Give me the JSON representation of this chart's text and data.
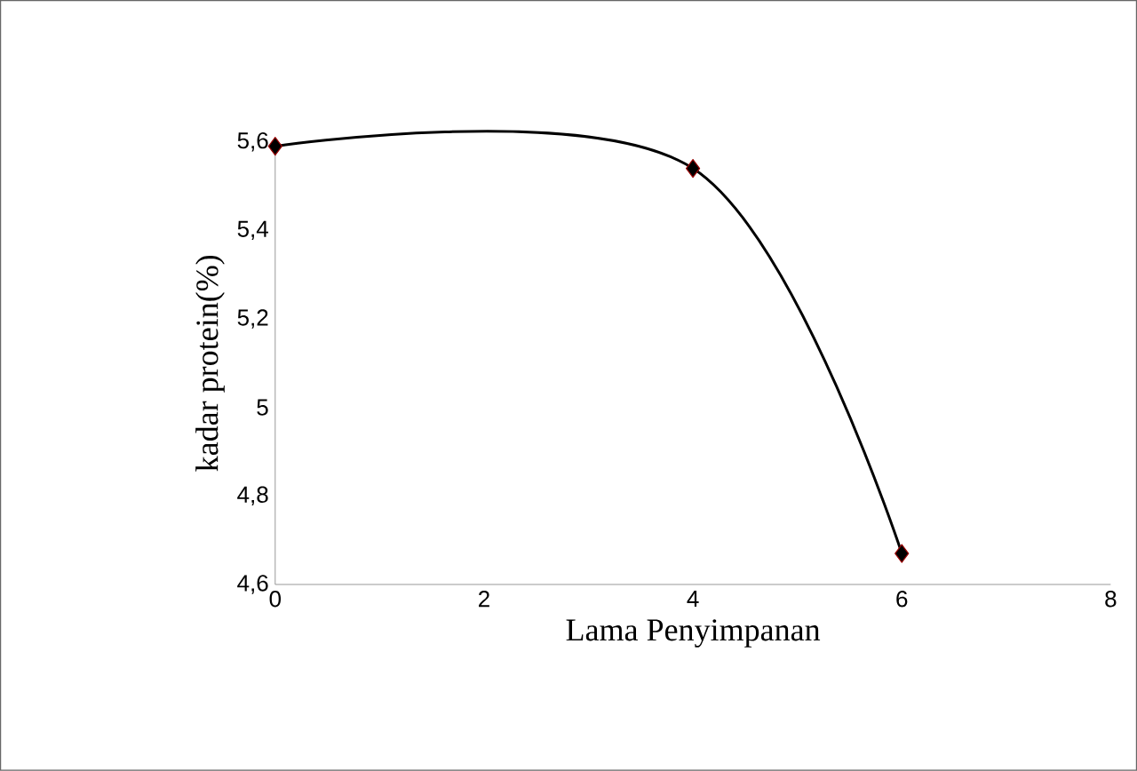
{
  "chart_data": {
    "type": "line",
    "xlabel": "Lama Penyimpanan",
    "ylabel": "kadar protein(%)",
    "x": [
      0,
      4,
      6
    ],
    "series": [
      {
        "color": "#000000",
        "values": [
          5.59,
          5.54,
          4.67
        ]
      }
    ],
    "xlim": [
      0,
      8
    ],
    "xticks": [
      0,
      2,
      4,
      6,
      8
    ],
    "ylim": [
      4.6,
      5.6
    ],
    "yticks": [
      {
        "value": 4.6,
        "label": "4,6"
      },
      {
        "value": 4.8,
        "label": "4,8"
      },
      {
        "value": 5,
        "label": "5"
      },
      {
        "value": 5.2,
        "label": "5,2"
      },
      {
        "value": 5.4,
        "label": "5,4"
      },
      {
        "value": 5.6,
        "label": "5,6"
      }
    ],
    "marker": "diamond",
    "grid": false
  }
}
